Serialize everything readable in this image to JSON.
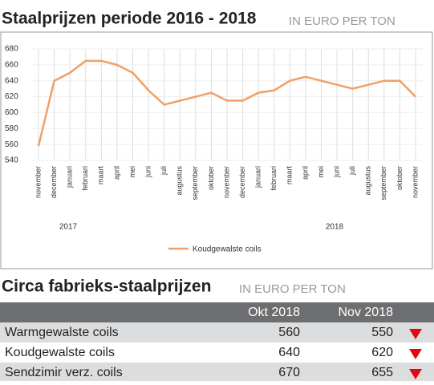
{
  "chart_data": {
    "type": "line",
    "title": "Staalprijzen periode 2016 - 2018",
    "subtitle": "IN EURO PER TON",
    "categories": [
      "november",
      "december",
      "januari",
      "februari",
      "maart",
      "april",
      "mei",
      "juni",
      "juli",
      "augustus",
      "september",
      "oktober",
      "november",
      "december",
      "januari",
      "februari",
      "maart",
      "april",
      "mei",
      "juni",
      "juli",
      "augustus",
      "september",
      "oktober",
      "november"
    ],
    "year_labels": [
      "2017",
      "2018"
    ],
    "series": [
      {
        "name": "Koudgewalste coils",
        "color": "#f0a066",
        "values": [
          558,
          640,
          650,
          665,
          665,
          660,
          650,
          628,
          610,
          615,
          620,
          625,
          615,
          615,
          625,
          628,
          640,
          645,
          640,
          635,
          630,
          635,
          640,
          640,
          620
        ]
      }
    ],
    "ylim": [
      540,
      680
    ],
    "yticks": [
      540,
      560,
      580,
      600,
      620,
      640,
      660,
      680
    ],
    "grid": true,
    "legend": "bottom"
  },
  "table": {
    "title": "Circa fabrieks-staalprijzen",
    "subtitle": "IN EURO PER TON",
    "columns": [
      "Okt 2018",
      "Nov 2018"
    ],
    "rows": [
      [
        "Warmgewalste coils",
        "560",
        "550"
      ],
      [
        "Koudgewalste coils",
        "640",
        "620"
      ],
      [
        "Sendzimir verz. coils",
        "670",
        "655"
      ]
    ]
  }
}
